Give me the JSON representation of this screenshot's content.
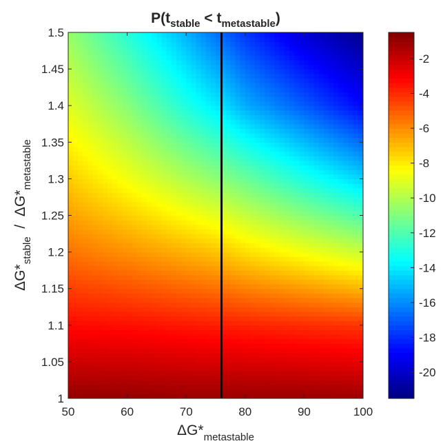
{
  "chart_data": {
    "type": "heatmap",
    "title": {
      "base": "P(t",
      "sub1": "stable",
      "mid": " < t",
      "sub2": "metastable",
      "end": ")"
    },
    "xlabel": {
      "base": "ΔG*",
      "sub": "metastable"
    },
    "ylabel": {
      "base": "ΔG*",
      "sub1": "stable",
      "sep": "  /  ",
      "base2": "ΔG*",
      "sub2": "metastable"
    },
    "xlim": [
      50,
      100
    ],
    "ylim": [
      1,
      1.5
    ],
    "x_ticks": [
      50,
      60,
      70,
      80,
      90,
      100
    ],
    "x_tick_labels": [
      "50",
      "60",
      "70",
      "80",
      "90",
      "100"
    ],
    "y_ticks": [
      1,
      1.05,
      1.1,
      1.15,
      1.2,
      1.25,
      1.3,
      1.35,
      1.4,
      1.45,
      1.5
    ],
    "y_tick_labels": [
      "1",
      "1.05",
      "1.1",
      "1.15",
      "1.2",
      "1.25",
      "1.3",
      "1.35",
      "1.4",
      "1.45",
      "1.5"
    ],
    "colorbar": {
      "colormap": "jet",
      "limits": [
        -21.5,
        -0.5
      ],
      "ticks": [
        -2,
        -4,
        -6,
        -8,
        -10,
        -12,
        -14,
        -16,
        -18,
        -20
      ],
      "tick_labels": [
        "-2",
        "-4",
        "-6",
        "-8",
        "-10",
        "-12",
        "-14",
        "-16",
        "-18",
        "-20"
      ]
    },
    "z_samples": {
      "x": [
        50,
        60,
        70,
        76,
        80,
        90,
        100
      ],
      "y": [
        1,
        1.1,
        1.2,
        1.3,
        1.4,
        1.5
      ],
      "z": [
        [
          -0.9,
          -0.9,
          -1.0,
          -1.0,
          -1.0,
          -1.0,
          -1.1
        ],
        [
          -3.3,
          -3.4,
          -3.6,
          -3.7,
          -3.8,
          -4.0,
          -4.2
        ],
        [
          -5.5,
          -6.1,
          -6.8,
          -7.2,
          -7.7,
          -8.6,
          -9.5
        ],
        [
          -7.3,
          -8.6,
          -10.0,
          -10.8,
          -11.4,
          -13.0,
          -14.5
        ],
        [
          -9.0,
          -10.8,
          -13.0,
          -14.2,
          -15.3,
          -17.0,
          -18.8
        ],
        [
          -10.5,
          -12.8,
          -15.2,
          -16.8,
          -17.8,
          -19.8,
          -21.2
        ]
      ]
    },
    "reference_line": {
      "orientation": "vertical",
      "x": 76,
      "color": "#000000"
    },
    "grid": false,
    "legend": "none",
    "colors": {
      "axis": "#262626",
      "background": "#ffffff",
      "line": "#000000"
    }
  }
}
